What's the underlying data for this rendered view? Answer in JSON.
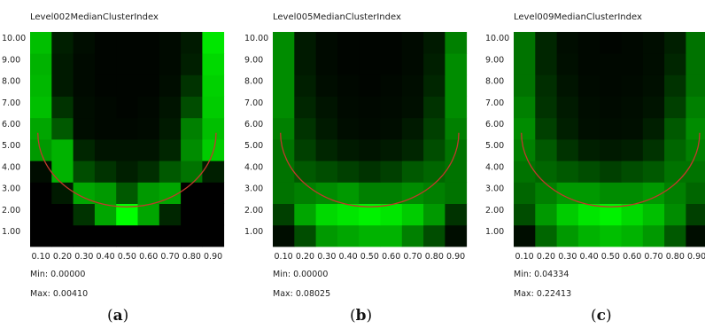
{
  "chart_data": [
    {
      "type": "heatmap",
      "title": "Level002MedianClusterIndex",
      "x": [
        "0.10",
        "0.20",
        "0.30",
        "0.40",
        "0.50",
        "0.60",
        "0.70",
        "0.80",
        "0.90"
      ],
      "y": [
        "1.00",
        "2.00",
        "3.00",
        "4.00",
        "5.00",
        "6.00",
        "7.00",
        "8.00",
        "9.00",
        "10.00"
      ],
      "values": [
        [
          0,
          0,
          0,
          0,
          0,
          0,
          0,
          0,
          0
        ],
        [
          0,
          0,
          0.2,
          0.65,
          1,
          0.65,
          0.15,
          0,
          0
        ],
        [
          0,
          0.1,
          0.65,
          0.6,
          0.35,
          0.6,
          0.65,
          0,
          0
        ],
        [
          0.05,
          0.7,
          0.3,
          0.2,
          0.12,
          0.18,
          0.35,
          0.45,
          0.12
        ],
        [
          0.6,
          0.7,
          0.15,
          0.08,
          0.08,
          0.08,
          0.15,
          0.55,
          0.8
        ],
        [
          0.65,
          0.35,
          0.05,
          0.03,
          0.03,
          0.04,
          0.1,
          0.5,
          0.75
        ],
        [
          0.75,
          0.2,
          0.05,
          0.03,
          0.02,
          0.03,
          0.08,
          0.3,
          0.8
        ],
        [
          0.72,
          0.1,
          0.04,
          0.02,
          0.02,
          0.02,
          0.05,
          0.2,
          0.82
        ],
        [
          0.7,
          0.1,
          0.04,
          0.02,
          0.02,
          0.02,
          0.04,
          0.12,
          0.85
        ],
        [
          0.75,
          0.12,
          0.05,
          0.02,
          0.02,
          0.02,
          0.04,
          0.1,
          0.9
        ]
      ],
      "min_label": "Min: 0.00000",
      "max_label": "Max: 0.00410",
      "caption_label": "a",
      "colorscale": [
        "#000000",
        "#00ff00"
      ],
      "curve_color": "#c0392b"
    },
    {
      "type": "heatmap",
      "title": "Level005MedianClusterIndex",
      "x": [
        "0.10",
        "0.20",
        "0.30",
        "0.40",
        "0.50",
        "0.60",
        "0.70",
        "0.80",
        "0.90"
      ],
      "y": [
        "1.00",
        "2.00",
        "3.00",
        "4.00",
        "5.00",
        "6.00",
        "7.00",
        "8.00",
        "9.00",
        "10.00"
      ],
      "values": [
        [
          0.05,
          0.3,
          0.6,
          0.65,
          0.7,
          0.7,
          0.5,
          0.3,
          0.05
        ],
        [
          0.25,
          0.65,
          0.85,
          0.9,
          0.95,
          0.9,
          0.8,
          0.6,
          0.2
        ],
        [
          0.45,
          0.5,
          0.55,
          0.6,
          0.5,
          0.5,
          0.55,
          0.5,
          0.45
        ],
        [
          0.45,
          0.35,
          0.3,
          0.25,
          0.2,
          0.25,
          0.35,
          0.4,
          0.45
        ],
        [
          0.45,
          0.25,
          0.15,
          0.1,
          0.08,
          0.1,
          0.15,
          0.3,
          0.45
        ],
        [
          0.5,
          0.2,
          0.1,
          0.05,
          0.04,
          0.05,
          0.1,
          0.25,
          0.5
        ],
        [
          0.55,
          0.15,
          0.08,
          0.04,
          0.03,
          0.04,
          0.06,
          0.2,
          0.55
        ],
        [
          0.55,
          0.12,
          0.05,
          0.03,
          0.02,
          0.03,
          0.05,
          0.15,
          0.55
        ],
        [
          0.55,
          0.1,
          0.04,
          0.02,
          0.02,
          0.02,
          0.04,
          0.12,
          0.55
        ],
        [
          0.55,
          0.1,
          0.04,
          0.02,
          0.02,
          0.02,
          0.04,
          0.1,
          0.5
        ]
      ],
      "min_label": "Min: 0.00000",
      "max_label": "Max: 0.08025",
      "caption_label": "b",
      "colorscale": [
        "#000000",
        "#00ff00"
      ],
      "curve_color": "#c0392b"
    },
    {
      "type": "heatmap",
      "title": "Level009MedianClusterIndex",
      "x": [
        "0.10",
        "0.20",
        "0.30",
        "0.40",
        "0.50",
        "0.60",
        "0.70",
        "0.80",
        "0.90"
      ],
      "y": [
        "1.00",
        "2.00",
        "3.00",
        "4.00",
        "5.00",
        "6.00",
        "7.00",
        "8.00",
        "9.00",
        "10.00"
      ],
      "values": [
        [
          0.05,
          0.4,
          0.6,
          0.7,
          0.75,
          0.7,
          0.6,
          0.35,
          0.05
        ],
        [
          0.3,
          0.6,
          0.8,
          0.9,
          0.95,
          0.85,
          0.75,
          0.55,
          0.25
        ],
        [
          0.4,
          0.5,
          0.6,
          0.6,
          0.55,
          0.55,
          0.6,
          0.5,
          0.4
        ],
        [
          0.45,
          0.4,
          0.35,
          0.3,
          0.25,
          0.3,
          0.35,
          0.45,
          0.45
        ],
        [
          0.5,
          0.35,
          0.2,
          0.12,
          0.1,
          0.12,
          0.2,
          0.4,
          0.5
        ],
        [
          0.55,
          0.25,
          0.12,
          0.06,
          0.05,
          0.06,
          0.12,
          0.35,
          0.55
        ],
        [
          0.5,
          0.2,
          0.1,
          0.05,
          0.04,
          0.05,
          0.08,
          0.25,
          0.5
        ],
        [
          0.45,
          0.18,
          0.08,
          0.04,
          0.03,
          0.04,
          0.06,
          0.2,
          0.45
        ],
        [
          0.45,
          0.15,
          0.06,
          0.03,
          0.03,
          0.03,
          0.05,
          0.15,
          0.45
        ],
        [
          0.45,
          0.15,
          0.05,
          0.03,
          0.02,
          0.03,
          0.05,
          0.12,
          0.45
        ]
      ],
      "min_label": "Min: 0.04334",
      "max_label": "Max: 0.22413",
      "caption_label": "c",
      "colorscale": [
        "#000000",
        "#00ff00"
      ],
      "curve_color": "#c0392b"
    }
  ]
}
